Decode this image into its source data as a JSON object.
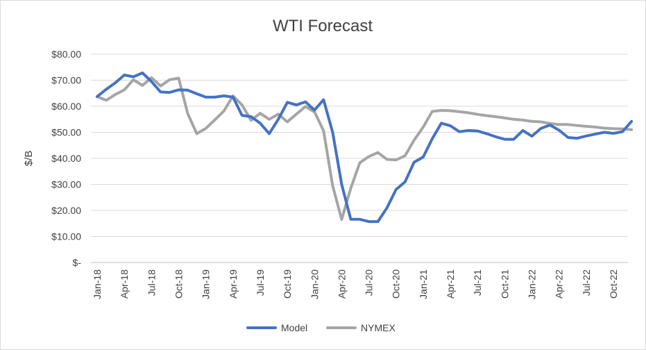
{
  "chart_data": {
    "type": "line",
    "title": "WTI Forecast",
    "xlabel": "",
    "ylabel": "$/B",
    "ylim": [
      0,
      80
    ],
    "yticks": [
      0,
      10,
      20,
      30,
      40,
      50,
      60,
      70,
      80
    ],
    "ytick_labels": [
      "$-",
      "$10.00",
      "$20.00",
      "$30.00",
      "$40.00",
      "$50.00",
      "$60.00",
      "$70.00",
      "$80.00"
    ],
    "xtick_labels": [
      "Jan-18",
      "Apr-18",
      "Jul-18",
      "Oct-18",
      "Jan-19",
      "Apr-19",
      "Jul-19",
      "Oct-19",
      "Jan-20",
      "Apr-20",
      "Jul-20",
      "Oct-20",
      "Jan-21",
      "Apr-21",
      "Jul-21",
      "Oct-21",
      "Jan-22",
      "Apr-22",
      "Jul-22",
      "Oct-22"
    ],
    "grid": true,
    "legend_position": "bottom",
    "x": [
      "Jan-18",
      "Feb-18",
      "Mar-18",
      "Apr-18",
      "May-18",
      "Jun-18",
      "Jul-18",
      "Aug-18",
      "Sep-18",
      "Oct-18",
      "Nov-18",
      "Dec-18",
      "Jan-19",
      "Feb-19",
      "Mar-19",
      "Apr-19",
      "May-19",
      "Jun-19",
      "Jul-19",
      "Aug-19",
      "Sep-19",
      "Oct-19",
      "Nov-19",
      "Dec-19",
      "Jan-20",
      "Feb-20",
      "Mar-20",
      "Apr-20",
      "May-20",
      "Jun-20",
      "Jul-20",
      "Aug-20",
      "Sep-20",
      "Oct-20",
      "Nov-20",
      "Dec-20",
      "Jan-21",
      "Feb-21",
      "Mar-21",
      "Apr-21",
      "May-21",
      "Jun-21",
      "Jul-21",
      "Aug-21",
      "Sep-21",
      "Oct-21",
      "Nov-21",
      "Dec-21",
      "Jan-22",
      "Feb-22",
      "Mar-22",
      "Apr-22",
      "May-22",
      "Jun-22",
      "Jul-22",
      "Aug-22",
      "Sep-22",
      "Oct-22",
      "Nov-22",
      "Dec-22"
    ],
    "series": [
      {
        "name": "Model",
        "color": "#4472c4",
        "values": [
          63.7,
          66.5,
          69.0,
          72.0,
          71.3,
          72.8,
          69.5,
          65.5,
          65.3,
          66.3,
          66.2,
          64.8,
          63.5,
          63.5,
          64.0,
          63.5,
          56.5,
          56.0,
          53.5,
          49.5,
          55.0,
          61.5,
          60.5,
          61.7,
          58.5,
          62.5,
          50.0,
          30.0,
          16.6,
          16.6,
          15.7,
          15.7,
          21.0,
          28.0,
          31.0,
          38.5,
          40.5,
          47.5,
          53.5,
          52.5,
          50.2,
          50.7,
          50.5,
          49.5,
          48.3,
          47.3,
          47.3,
          50.7,
          48.5,
          51.5,
          52.8,
          50.8,
          48.0,
          47.7,
          48.6,
          49.3,
          50.0,
          49.6,
          50.2,
          54.2
        ]
      },
      {
        "name": "NYMEX",
        "color": "#a5a5a5",
        "values": [
          63.7,
          62.3,
          64.5,
          66.3,
          70.2,
          68.0,
          71.0,
          67.8,
          70.2,
          70.8,
          57.2,
          49.5,
          51.5,
          54.8,
          58.2,
          64.0,
          60.5,
          54.6,
          57.3,
          55.0,
          57.0,
          54.0,
          57.0,
          59.9,
          57.8,
          50.6,
          29.5,
          16.5,
          28.5,
          38.3,
          40.7,
          42.2,
          39.6,
          39.4,
          41.0,
          47.0,
          52.0,
          58.0,
          58.4,
          58.3,
          57.9,
          57.5,
          56.9,
          56.4,
          56.0,
          55.5,
          55.0,
          54.7,
          54.2,
          54.0,
          53.4,
          53.0,
          53.0,
          52.6,
          52.3,
          52.0,
          51.6,
          51.4,
          51.3,
          51.0
        ]
      }
    ]
  }
}
